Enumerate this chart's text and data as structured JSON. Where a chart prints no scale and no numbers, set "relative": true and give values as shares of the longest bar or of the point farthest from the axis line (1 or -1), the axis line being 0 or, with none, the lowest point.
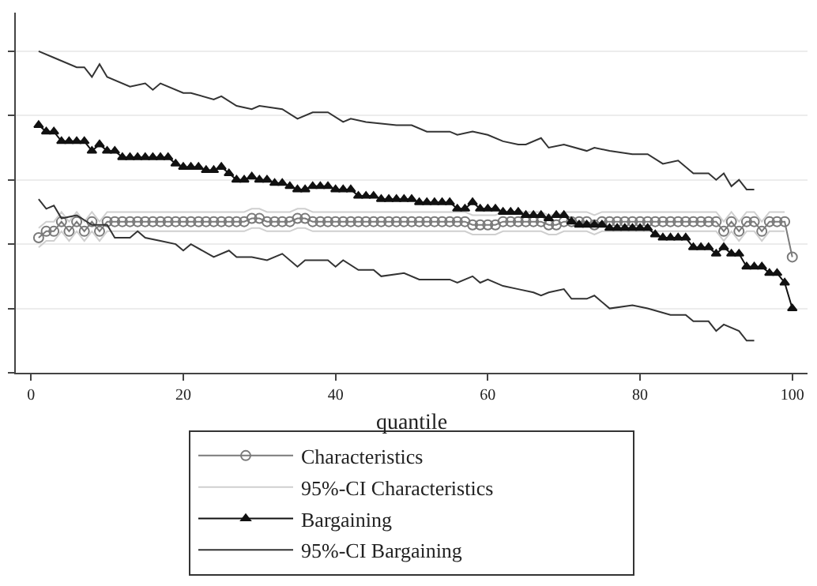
{
  "chart_data": {
    "type": "line",
    "relative": true,
    "xlabel": "quantile",
    "xlim": [
      -2,
      102
    ],
    "xticks": [
      0,
      20,
      40,
      60,
      80,
      100
    ],
    "grid": "y",
    "legend": "bottom",
    "x": [
      1,
      2,
      3,
      4,
      5,
      6,
      7,
      8,
      9,
      10,
      11,
      12,
      13,
      14,
      15,
      16,
      17,
      18,
      19,
      20,
      21,
      22,
      23,
      24,
      25,
      26,
      27,
      28,
      29,
      30,
      31,
      32,
      33,
      34,
      35,
      36,
      37,
      38,
      39,
      40,
      41,
      42,
      43,
      44,
      45,
      46,
      47,
      48,
      49,
      50,
      51,
      52,
      53,
      54,
      55,
      56,
      57,
      58,
      59,
      60,
      61,
      62,
      63,
      64,
      65,
      66,
      67,
      68,
      69,
      70,
      71,
      72,
      73,
      74,
      75,
      76,
      77,
      78,
      79,
      80,
      81,
      82,
      83,
      84,
      85,
      86,
      87,
      88,
      89,
      90,
      91,
      92,
      93,
      94,
      95,
      96,
      97,
      98,
      99,
      100
    ],
    "series": [
      {
        "name": "Characteristics",
        "color": "#7a7a7a",
        "marker": "circle",
        "values": [
          0.42,
          0.44,
          0.44,
          0.47,
          0.44,
          0.47,
          0.44,
          0.47,
          0.44,
          0.47,
          0.47,
          0.47,
          0.47,
          0.47,
          0.47,
          0.47,
          0.47,
          0.47,
          0.47,
          0.47,
          0.47,
          0.47,
          0.47,
          0.47,
          0.47,
          0.47,
          0.47,
          0.47,
          0.48,
          0.48,
          0.47,
          0.47,
          0.47,
          0.47,
          0.48,
          0.48,
          0.47,
          0.47,
          0.47,
          0.47,
          0.47,
          0.47,
          0.47,
          0.47,
          0.47,
          0.47,
          0.47,
          0.47,
          0.47,
          0.47,
          0.47,
          0.47,
          0.47,
          0.47,
          0.47,
          0.47,
          0.47,
          0.46,
          0.46,
          0.46,
          0.46,
          0.47,
          0.47,
          0.47,
          0.47,
          0.47,
          0.47,
          0.46,
          0.46,
          0.47,
          0.47,
          0.47,
          0.47,
          0.46,
          0.47,
          0.47,
          0.47,
          0.47,
          0.47,
          0.47,
          0.47,
          0.47,
          0.47,
          0.47,
          0.47,
          0.47,
          0.47,
          0.47,
          0.47,
          0.47,
          0.44,
          0.47,
          0.44,
          0.47,
          0.47,
          0.44,
          0.47,
          0.47,
          0.47,
          0.36
        ]
      },
      {
        "name": "95%-CI Characteristics",
        "color": "#cfcfcf",
        "marker": "none",
        "x": [
          1,
          2,
          3,
          4,
          5,
          6,
          7,
          8,
          9,
          10,
          28,
          29,
          30,
          31,
          34,
          35,
          36,
          37,
          57,
          58,
          61,
          62,
          67,
          68,
          69,
          70,
          73,
          74,
          75,
          90,
          91,
          92,
          93,
          94,
          95,
          96,
          97,
          99
        ],
        "values": [
          0.45,
          0.47,
          0.47,
          0.5,
          0.47,
          0.5,
          0.47,
          0.5,
          0.47,
          0.5,
          0.5,
          0.51,
          0.51,
          0.5,
          0.5,
          0.51,
          0.51,
          0.5,
          0.5,
          0.49,
          0.49,
          0.5,
          0.5,
          0.49,
          0.49,
          0.5,
          0.5,
          0.49,
          0.5,
          0.5,
          0.47,
          0.5,
          0.47,
          0.5,
          0.5,
          0.47,
          0.5,
          0.5
        ]
      },
      {
        "color": "#cfcfcf",
        "marker": "none",
        "x": [
          1,
          2,
          3,
          4,
          5,
          6,
          7,
          8,
          9,
          10,
          28,
          29,
          30,
          31,
          34,
          35,
          36,
          37,
          57,
          58,
          61,
          62,
          67,
          68,
          69,
          70,
          73,
          74,
          75,
          90,
          91,
          92,
          93,
          94,
          95,
          96,
          97,
          99
        ],
        "values": [
          0.39,
          0.41,
          0.41,
          0.44,
          0.41,
          0.44,
          0.41,
          0.44,
          0.41,
          0.44,
          0.44,
          0.45,
          0.45,
          0.44,
          0.44,
          0.45,
          0.45,
          0.44,
          0.44,
          0.43,
          0.43,
          0.44,
          0.44,
          0.43,
          0.43,
          0.44,
          0.44,
          0.43,
          0.44,
          0.44,
          0.41,
          0.44,
          0.41,
          0.44,
          0.44,
          0.41,
          0.44,
          0.44
        ]
      },
      {
        "name": "Bargaining",
        "color": "#111111",
        "marker": "triangle",
        "values": [
          0.77,
          0.75,
          0.75,
          0.72,
          0.72,
          0.72,
          0.72,
          0.69,
          0.71,
          0.69,
          0.69,
          0.67,
          0.67,
          0.67,
          0.67,
          0.67,
          0.67,
          0.67,
          0.65,
          0.64,
          0.64,
          0.64,
          0.63,
          0.63,
          0.64,
          0.62,
          0.6,
          0.6,
          0.61,
          0.6,
          0.6,
          0.59,
          0.59,
          0.58,
          0.57,
          0.57,
          0.58,
          0.58,
          0.58,
          0.57,
          0.57,
          0.57,
          0.55,
          0.55,
          0.55,
          0.54,
          0.54,
          0.54,
          0.54,
          0.54,
          0.53,
          0.53,
          0.53,
          0.53,
          0.53,
          0.51,
          0.51,
          0.53,
          0.51,
          0.51,
          0.51,
          0.5,
          0.5,
          0.5,
          0.49,
          0.49,
          0.49,
          0.48,
          0.49,
          0.49,
          0.47,
          0.46,
          0.46,
          0.46,
          0.46,
          0.45,
          0.45,
          0.45,
          0.45,
          0.45,
          0.45,
          0.43,
          0.42,
          0.42,
          0.42,
          0.42,
          0.39,
          0.39,
          0.39,
          0.37,
          0.39,
          0.37,
          0.37,
          0.33,
          0.33,
          0.33,
          0.31,
          0.31,
          0.28,
          0.2
        ]
      },
      {
        "name": "95%-CI Bargaining",
        "color": "#333333",
        "marker": "none",
        "x": [
          1,
          3,
          6,
          7,
          8,
          9,
          10,
          13,
          15,
          16,
          17,
          20,
          21,
          24,
          25,
          27,
          29,
          30,
          33,
          35,
          37,
          39,
          41,
          42,
          44,
          48,
          50,
          52,
          55,
          56,
          58,
          60,
          62,
          64,
          65,
          67,
          68,
          70,
          73,
          74,
          76,
          79,
          81,
          83,
          85,
          87,
          89,
          90,
          91,
          92,
          93,
          94,
          95
        ],
        "values": [
          1.0,
          0.98,
          0.95,
          0.95,
          0.92,
          0.96,
          0.92,
          0.89,
          0.9,
          0.88,
          0.9,
          0.87,
          0.87,
          0.85,
          0.86,
          0.83,
          0.82,
          0.83,
          0.82,
          0.79,
          0.81,
          0.81,
          0.78,
          0.79,
          0.78,
          0.77,
          0.77,
          0.75,
          0.75,
          0.74,
          0.75,
          0.74,
          0.72,
          0.71,
          0.71,
          0.73,
          0.7,
          0.71,
          0.69,
          0.7,
          0.69,
          0.68,
          0.68,
          0.65,
          0.66,
          0.62,
          0.62,
          0.6,
          0.62,
          0.58,
          0.6,
          0.57,
          0.57
        ]
      },
      {
        "color": "#333333",
        "marker": "none",
        "x": [
          1,
          2,
          3,
          4,
          6,
          8,
          10,
          11,
          13,
          14,
          15,
          17,
          19,
          20,
          21,
          24,
          26,
          27,
          29,
          31,
          33,
          35,
          36,
          39,
          40,
          41,
          43,
          45,
          46,
          49,
          51,
          55,
          56,
          58,
          59,
          60,
          62,
          64,
          66,
          67,
          68,
          70,
          71,
          73,
          74,
          76,
          79,
          81,
          84,
          86,
          87,
          89,
          90,
          91,
          93,
          94,
          95
        ],
        "values": [
          0.54,
          0.51,
          0.52,
          0.48,
          0.49,
          0.46,
          0.46,
          0.42,
          0.42,
          0.44,
          0.42,
          0.41,
          0.4,
          0.38,
          0.4,
          0.36,
          0.38,
          0.36,
          0.36,
          0.35,
          0.37,
          0.33,
          0.35,
          0.35,
          0.33,
          0.35,
          0.32,
          0.32,
          0.3,
          0.31,
          0.29,
          0.29,
          0.28,
          0.3,
          0.28,
          0.29,
          0.27,
          0.26,
          0.25,
          0.24,
          0.25,
          0.26,
          0.23,
          0.23,
          0.24,
          0.2,
          0.21,
          0.2,
          0.18,
          0.18,
          0.16,
          0.16,
          0.13,
          0.15,
          0.13,
          0.1,
          0.1
        ]
      }
    ]
  }
}
